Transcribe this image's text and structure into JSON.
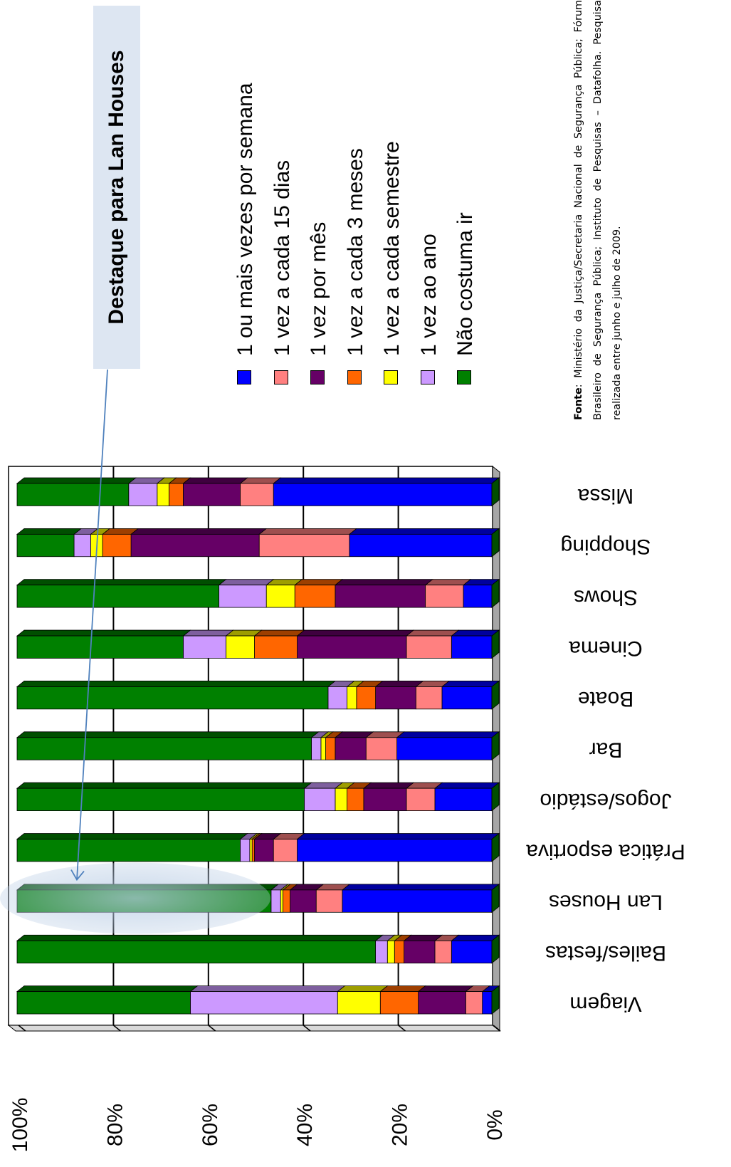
{
  "callout": {
    "text": "Destaque para Lan Houses"
  },
  "source": {
    "label": "Fonte",
    "text": ": Ministério da Justiça/Secretaria Nacional de Segurança Pública; Fórum Brasileiro de Segurança Pública; Instituto de Pesquisas – Datafolha. Pesquisa realizada entre junho e julho de 2009."
  },
  "chart_data": {
    "type": "bar",
    "stacked": true,
    "percent": true,
    "orientation": "rotated",
    "ylim": [
      0,
      100
    ],
    "yticks": [
      "0%",
      "20%",
      "40%",
      "60%",
      "80%",
      "100%"
    ],
    "grid": true,
    "legend_position": "right",
    "highlight_category": "Lan Houses",
    "categories": [
      "Missa",
      "Shopping",
      "Shows",
      "Cinema",
      "Boate",
      "Bar",
      "Jogos/estádio",
      "Prática esportiva",
      "Lan Houses",
      "Bailes/festas",
      "Viagem"
    ],
    "series": [
      {
        "name": "1 ou mais vezes por semana",
        "color": "#0000ff",
        "values": [
          46,
          30,
          6,
          8.5,
          10.5,
          20,
          12,
          41,
          31.5,
          8.5,
          2
        ]
      },
      {
        "name": "1 vez a cada 15 dias",
        "color": "#ff8080",
        "values": [
          7,
          19,
          8,
          9.5,
          5.5,
          6.5,
          6,
          5,
          5.5,
          3.5,
          3.5
        ]
      },
      {
        "name": "1 vez por mês",
        "color": "#660066",
        "values": [
          12,
          27,
          19,
          23,
          8.5,
          6.5,
          9,
          4,
          5.5,
          6.5,
          10
        ]
      },
      {
        "name": "1 vez a cada 3 meses",
        "color": "#ff6600",
        "values": [
          3,
          6,
          8.5,
          9,
          4,
          2,
          3.5,
          0.5,
          1.5,
          2,
          8
        ]
      },
      {
        "name": "1 vez a cada semestre",
        "color": "#ffff00",
        "values": [
          2.5,
          2.5,
          6,
          6,
          2,
          1,
          2.5,
          0.5,
          0.5,
          1.5,
          9
        ]
      },
      {
        "name": "1 vez ao ano",
        "color": "#cc99ff",
        "values": [
          6,
          3.5,
          10,
          9,
          4,
          2,
          6.5,
          2,
          2,
          2.5,
          31
        ]
      },
      {
        "name": "Não costuma ir",
        "color": "#008000",
        "values": [
          23.5,
          12,
          42.5,
          35,
          65.5,
          62,
          60.5,
          47,
          53.5,
          75.5,
          36.5
        ]
      }
    ]
  }
}
